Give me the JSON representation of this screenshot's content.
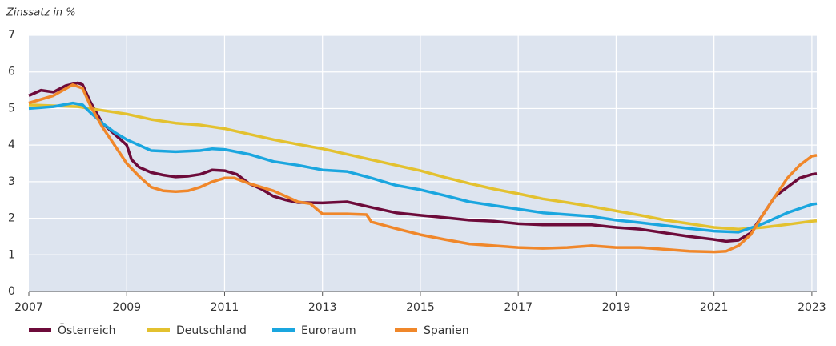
{
  "chart_data": {
    "type": "line",
    "y_label": "Zinssatz in %",
    "xlim": [
      2007,
      2023.1
    ],
    "xticks": [
      2007,
      2009,
      2011,
      2013,
      2015,
      2017,
      2019,
      2021,
      2023
    ],
    "ylim": [
      0,
      7
    ],
    "yticks": [
      0,
      1,
      2,
      3,
      4,
      5,
      6,
      7
    ],
    "grid": true,
    "legend": "bottom",
    "series": [
      {
        "name": "Österreich",
        "color": "#6d0b3a",
        "x": [
          2007,
          2007.25,
          2007.5,
          2007.75,
          2008,
          2008.1,
          2008.25,
          2008.5,
          2008.75,
          2009,
          2009.1,
          2009.25,
          2009.5,
          2009.75,
          2010,
          2010.25,
          2010.5,
          2010.75,
          2011,
          2011.25,
          2011.5,
          2011.75,
          2012,
          2012.25,
          2012.5,
          2013,
          2013.5,
          2014,
          2014.5,
          2015,
          2015.5,
          2016,
          2016.5,
          2017,
          2017.5,
          2018,
          2018.5,
          2019,
          2019.5,
          2020,
          2020.5,
          2021,
          2021.25,
          2021.5,
          2021.75,
          2021.9,
          2022,
          2022.25,
          2022.5,
          2022.75,
          2023,
          2023.1
        ],
        "values": [
          5.35,
          5.5,
          5.45,
          5.62,
          5.7,
          5.65,
          5.2,
          4.6,
          4.3,
          4.0,
          3.6,
          3.4,
          3.25,
          3.18,
          3.13,
          3.15,
          3.2,
          3.32,
          3.3,
          3.2,
          2.95,
          2.8,
          2.6,
          2.5,
          2.43,
          2.42,
          2.45,
          2.3,
          2.15,
          2.08,
          2.02,
          1.95,
          1.92,
          1.85,
          1.82,
          1.82,
          1.82,
          1.75,
          1.7,
          1.6,
          1.5,
          1.42,
          1.37,
          1.4,
          1.6,
          1.9,
          2.1,
          2.6,
          2.85,
          3.1,
          3.2,
          3.22
        ]
      },
      {
        "name": "Deutschland",
        "color": "#e3c12f",
        "x": [
          2007,
          2008,
          2008.5,
          2009,
          2009.5,
          2010,
          2010.5,
          2011,
          2011.5,
          2012,
          2012.5,
          2013,
          2013.5,
          2014,
          2014.5,
          2015,
          2015.5,
          2016,
          2016.5,
          2017,
          2017.5,
          2018,
          2018.5,
          2019,
          2019.5,
          2020,
          2020.5,
          2021,
          2021.5,
          2022,
          2022.5,
          2023,
          2023.1
        ],
        "values": [
          5.1,
          5.05,
          4.95,
          4.85,
          4.7,
          4.6,
          4.55,
          4.45,
          4.3,
          4.15,
          4.02,
          3.9,
          3.75,
          3.6,
          3.45,
          3.3,
          3.12,
          2.95,
          2.8,
          2.67,
          2.53,
          2.43,
          2.32,
          2.2,
          2.08,
          1.95,
          1.85,
          1.75,
          1.7,
          1.75,
          1.83,
          1.92,
          1.93
        ]
      },
      {
        "name": "Euroraum",
        "color": "#1aa6df",
        "x": [
          2007,
          2007.5,
          2007.9,
          2008.1,
          2008.25,
          2008.5,
          2008.75,
          2009,
          2009.25,
          2009.5,
          2010,
          2010.5,
          2010.75,
          2011,
          2011.5,
          2012,
          2012.5,
          2013,
          2013.5,
          2014,
          2014.5,
          2015,
          2015.5,
          2016,
          2016.5,
          2017,
          2017.5,
          2018,
          2018.5,
          2019,
          2019.5,
          2020,
          2020.5,
          2021,
          2021.5,
          2022,
          2022.5,
          2023,
          2023.1
        ],
        "values": [
          5.0,
          5.05,
          5.15,
          5.1,
          4.9,
          4.6,
          4.35,
          4.15,
          4.0,
          3.85,
          3.82,
          3.85,
          3.9,
          3.88,
          3.75,
          3.55,
          3.45,
          3.32,
          3.28,
          3.1,
          2.9,
          2.78,
          2.62,
          2.45,
          2.35,
          2.25,
          2.15,
          2.1,
          2.05,
          1.95,
          1.88,
          1.8,
          1.72,
          1.65,
          1.62,
          1.85,
          2.15,
          2.38,
          2.4
        ]
      },
      {
        "name": "Spanien",
        "color": "#f0872a",
        "x": [
          2007,
          2007.5,
          2007.9,
          2008.1,
          2008.25,
          2008.5,
          2008.75,
          2009,
          2009.25,
          2009.5,
          2009.75,
          2010,
          2010.25,
          2010.5,
          2010.75,
          2011,
          2011.2,
          2011.5,
          2012,
          2012.5,
          2012.75,
          2013,
          2013.5,
          2013.9,
          2014,
          2014.5,
          2015,
          2015.5,
          2016,
          2016.5,
          2017,
          2017.5,
          2018,
          2018.5,
          2019,
          2019.5,
          2020,
          2020.5,
          2021,
          2021.25,
          2021.5,
          2021.75,
          2022,
          2022.25,
          2022.5,
          2022.75,
          2023,
          2023.1
        ],
        "values": [
          5.15,
          5.35,
          5.65,
          5.55,
          5.1,
          4.5,
          4.0,
          3.5,
          3.15,
          2.85,
          2.75,
          2.73,
          2.75,
          2.85,
          3.0,
          3.1,
          3.1,
          2.95,
          2.75,
          2.45,
          2.4,
          2.12,
          2.12,
          2.1,
          1.9,
          1.72,
          1.55,
          1.42,
          1.3,
          1.25,
          1.2,
          1.18,
          1.2,
          1.25,
          1.2,
          1.2,
          1.15,
          1.1,
          1.08,
          1.1,
          1.25,
          1.55,
          2.1,
          2.6,
          3.1,
          3.45,
          3.7,
          3.72
        ]
      }
    ]
  }
}
